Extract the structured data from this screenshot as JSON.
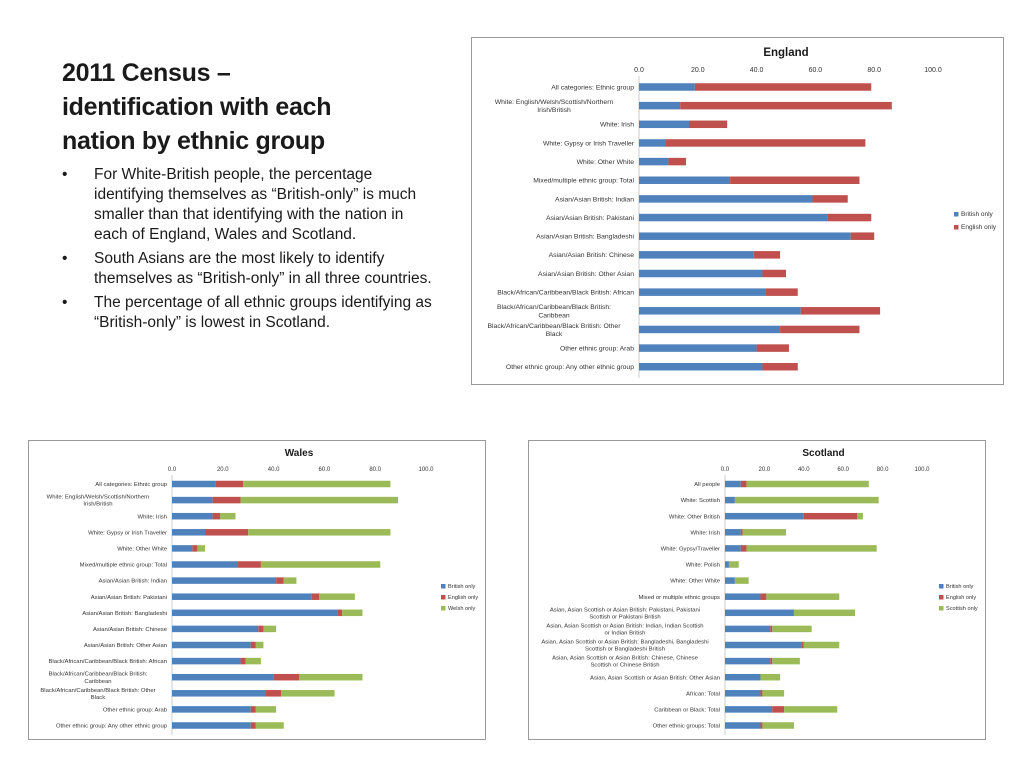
{
  "slide": {
    "title_lines": [
      "2011 Census –",
      "identification with each",
      "nation by ethnic group"
    ],
    "bullet_char": "•",
    "bullets": [
      "For White-British people, the percentage identifying themselves as “British-only”  is much smaller than that identifying with the nation in each of England, Wales and Scotland.",
      "South Asians are the most likely to identify themselves as “British-only” in all three countries.",
      "The percentage of all ethnic groups identifying as “British-only” is lowest in Scotland."
    ]
  },
  "colors": {
    "british": "#4f81bd",
    "nation_red": "#c0504d",
    "nation_green": "#9bbb59",
    "frame": "#9a9a9a"
  },
  "chart_data": [
    {
      "type": "bar",
      "stacked": true,
      "orientation": "horizontal",
      "title": "England",
      "xlim": [
        0,
        100
      ],
      "ticks": [
        "0.0",
        "20.0",
        "40.0",
        "60.0",
        "80.0",
        "100.0"
      ],
      "legend_position": "right",
      "categories": [
        "All categories: Ethnic group",
        "White: English/Welsh/Scottish/Northern Irish/British",
        "White: Irish",
        "White: Gypsy or Irish Traveller",
        "White: Other White",
        "Mixed/multiple ethnic group: Total",
        "Asian/Asian British: Indian",
        "Asian/Asian British: Pakistani",
        "Asian/Asian British: Bangladeshi",
        "Asian/Asian British: Chinese",
        "Asian/Asian British: Other Asian",
        "Black/African/Caribbean/Black British: African",
        "Black/African/Caribbean/Black British: Caribbean",
        "Black/African/Caribbean/Black British: Other Black",
        "Other ethnic group: Arab",
        "Other ethnic group: Any other ethnic group"
      ],
      "series": [
        {
          "name": "British only",
          "color": "#4f81bd",
          "values": [
            19,
            14,
            17,
            9,
            10,
            31,
            59,
            64,
            72,
            39,
            42,
            43,
            55,
            48,
            40,
            42
          ]
        },
        {
          "name": "English only",
          "color": "#c0504d",
          "values": [
            60,
            72,
            13,
            68,
            6,
            44,
            12,
            15,
            8,
            9,
            8,
            11,
            27,
            27,
            11,
            12
          ]
        }
      ]
    },
    {
      "type": "bar",
      "stacked": true,
      "orientation": "horizontal",
      "title": "Wales",
      "xlim": [
        0,
        100
      ],
      "ticks": [
        "0.0",
        "20.0",
        "40.0",
        "60.0",
        "80.0",
        "100.0"
      ],
      "legend_position": "right",
      "categories": [
        "All categories: Ethnic group",
        "White: English/Welsh/Scottish/Northern Irish/British",
        "White: Irish",
        "White: Gypsy or Irish Traveller",
        "White: Other White",
        "Mixed/multiple ethnic group: Total",
        "Asian/Asian British: Indian",
        "Asian/Asian British: Pakistani",
        "Asian/Asian British: Bangladeshi",
        "Asian/Asian British: Chinese",
        "Asian/Asian British: Other Asian",
        "Black/African/Caribbean/Black British: African",
        "Black/African/Caribbean/Black British: Caribbean",
        "Black/African/Caribbean/Black British: Other Black",
        "Other ethnic group: Arab",
        "Other ethnic group: Any other ethnic group"
      ],
      "series": [
        {
          "name": "British only",
          "color": "#4f81bd",
          "values": [
            17,
            16,
            16,
            13,
            8,
            26,
            41,
            55,
            65,
            34,
            31,
            27,
            40,
            37,
            31,
            31
          ]
        },
        {
          "name": "English only",
          "color": "#c0504d",
          "values": [
            11,
            11,
            3,
            17,
            2,
            9,
            3,
            3,
            2,
            2,
            2,
            2,
            10,
            6,
            2,
            2
          ]
        },
        {
          "name": "Welsh only",
          "color": "#9bbb59",
          "values": [
            58,
            62,
            6,
            56,
            3,
            47,
            5,
            14,
            8,
            5,
            3,
            6,
            25,
            21,
            8,
            11
          ]
        }
      ]
    },
    {
      "type": "bar",
      "stacked": true,
      "orientation": "horizontal",
      "title": "Scotland",
      "xlim": [
        0,
        100
      ],
      "ticks": [
        "0.0",
        "20.0",
        "40.0",
        "60.0",
        "80.0",
        "100.0"
      ],
      "legend_position": "right",
      "categories": [
        "All people",
        "White: Scottish",
        "White: Other British",
        "White: Irish",
        "White: Gypsy/Traveller",
        "White: Polish",
        "White: Other White",
        "Mixed or multiple ethnic groups",
        "Asian, Asian Scottish or Asian British: Pakistani, Pakistani Scottish or Pakistani British",
        "Asian, Asian Scottish or Asian British: Indian, Indian Scottish or Indian British",
        "Asian, Asian Scottish or Asian British: Bangladeshi, Bangladeshi Scottish or Bangladeshi British",
        "Asian, Asian Scottish or Asian British: Chinese, Chinese Scottish or Chinese British",
        "Asian, Asian Scottish or Asian British: Other Asian",
        "African: Total",
        "Caribbean or Black: Total",
        "Other ethnic groups: Total"
      ],
      "series": [
        {
          "name": "British only",
          "color": "#4f81bd",
          "values": [
            8,
            5,
            40,
            8,
            8,
            2,
            5,
            18,
            35,
            23,
            39,
            23,
            18,
            18,
            24,
            18
          ]
        },
        {
          "name": "English only",
          "color": "#c0504d",
          "values": [
            3,
            0,
            27,
            1,
            3,
            0,
            0,
            3,
            0,
            1,
            1,
            1,
            0,
            1,
            6,
            1
          ]
        },
        {
          "name": "Scottish only",
          "color": "#9bbb59",
          "values": [
            62,
            73,
            3,
            22,
            66,
            5,
            7,
            37,
            31,
            20,
            18,
            14,
            10,
            11,
            27,
            16
          ]
        }
      ]
    }
  ]
}
